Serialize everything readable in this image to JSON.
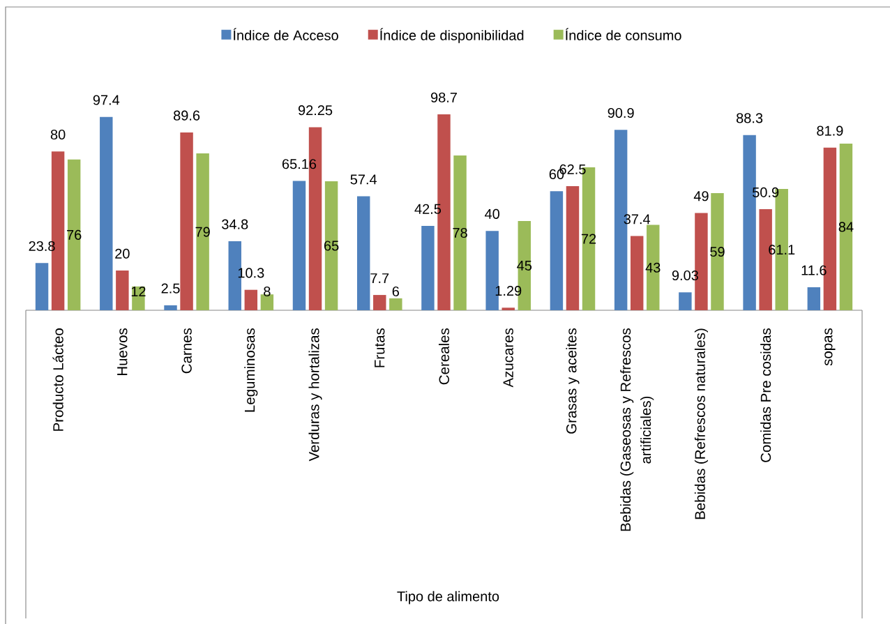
{
  "chart_data": {
    "type": "bar",
    "xlabel": "Tipo de alimento",
    "categories": [
      "Producto Lácteo",
      "Huevos",
      "Carnes",
      "Leguminosas",
      "Verduras y hortalizas",
      "Frutas",
      "Cereales",
      "Azucares",
      "Grasas y aceites",
      "Bebidas (Gaseosas y Refrescos artificiales)",
      "Bebidas (Refrescos naturales)",
      "Comidas Pre cosidas",
      "sopas"
    ],
    "series": [
      {
        "name": "Índice de Acceso",
        "color": "#4f81bd",
        "values": [
          23.8,
          97.4,
          2.5,
          34.8,
          65.16,
          57.4,
          42.5,
          40,
          60,
          90.9,
          9.03,
          88.3,
          11.6
        ]
      },
      {
        "name": "Índice de disponibilidad",
        "color": "#c0504d",
        "values": [
          80,
          20,
          89.6,
          10.3,
          92.25,
          7.7,
          98.7,
          1.29,
          62.5,
          37.4,
          49,
          50.9,
          81.9
        ]
      },
      {
        "name": "Índice de consumo",
        "color": "#9bbb59",
        "values": [
          76,
          12,
          79,
          8,
          65,
          6,
          78,
          45,
          72,
          43,
          59,
          61.1,
          84
        ]
      }
    ],
    "data_labels": true,
    "legend": "top"
  }
}
